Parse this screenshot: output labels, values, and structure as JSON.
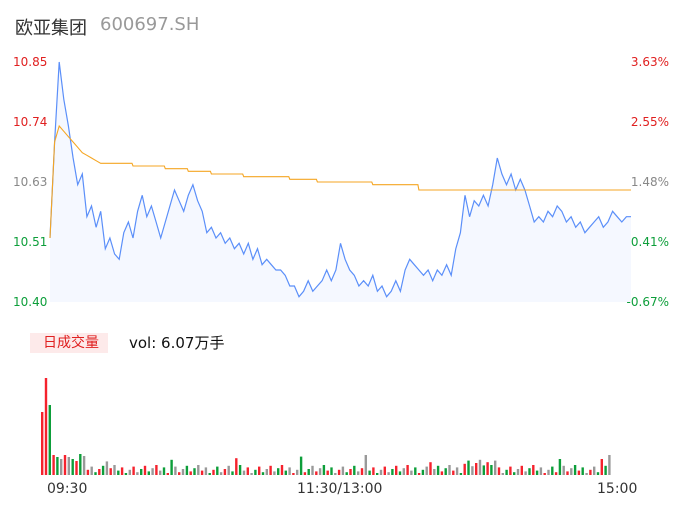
{
  "header": {
    "name": "欧亚集团",
    "code": "600697.SH"
  },
  "legend": {
    "label": "日成交量",
    "volume_text": "vol: 6.07万手"
  },
  "colors": {
    "price": "#5b8ff9",
    "avg": "#f5a623",
    "up": "#f5222d",
    "down": "#0d9e3a",
    "flat": "#999999"
  },
  "chart_data": {
    "type": "line",
    "title": "",
    "y_left_ticks": [
      "10.85",
      "10.74",
      "10.63",
      "10.51",
      "10.40"
    ],
    "y_right_ticks": [
      "3.63%",
      "2.55%",
      "1.48%",
      "0.41%",
      "-0.67%"
    ],
    "x_ticks": [
      "09:30",
      "11:30/13:00",
      "15:00"
    ],
    "ylim": [
      10.4,
      10.85
    ],
    "prev_close": 10.47,
    "grid": false,
    "series": [
      {
        "kind": "price",
        "points": [
          [
            0,
            10.52
          ],
          [
            1,
            10.7
          ],
          [
            2,
            10.85
          ],
          [
            3,
            10.78
          ],
          [
            4,
            10.73
          ],
          [
            5,
            10.67
          ],
          [
            6,
            10.62
          ],
          [
            7,
            10.64
          ],
          [
            8,
            10.56
          ],
          [
            9,
            10.58
          ],
          [
            10,
            10.54
          ],
          [
            11,
            10.57
          ],
          [
            12,
            10.5
          ],
          [
            13,
            10.52
          ],
          [
            14,
            10.49
          ],
          [
            15,
            10.48
          ],
          [
            16,
            10.53
          ],
          [
            17,
            10.55
          ],
          [
            18,
            10.52
          ],
          [
            19,
            10.57
          ],
          [
            20,
            10.6
          ],
          [
            21,
            10.56
          ],
          [
            22,
            10.58
          ],
          [
            23,
            10.55
          ],
          [
            24,
            10.52
          ],
          [
            25,
            10.55
          ],
          [
            26,
            10.58
          ],
          [
            27,
            10.61
          ],
          [
            28,
            10.59
          ],
          [
            29,
            10.57
          ],
          [
            30,
            10.6
          ],
          [
            31,
            10.62
          ],
          [
            32,
            10.59
          ],
          [
            33,
            10.57
          ],
          [
            34,
            10.53
          ],
          [
            35,
            10.54
          ],
          [
            36,
            10.52
          ],
          [
            37,
            10.53
          ],
          [
            38,
            10.51
          ],
          [
            39,
            10.52
          ],
          [
            40,
            10.5
          ],
          [
            41,
            10.51
          ],
          [
            42,
            10.49
          ],
          [
            43,
            10.51
          ],
          [
            44,
            10.48
          ],
          [
            45,
            10.5
          ],
          [
            46,
            10.47
          ],
          [
            47,
            10.48
          ],
          [
            48,
            10.47
          ],
          [
            49,
            10.46
          ],
          [
            50,
            10.46
          ],
          [
            51,
            10.45
          ],
          [
            52,
            10.43
          ],
          [
            53,
            10.43
          ],
          [
            54,
            10.41
          ],
          [
            55,
            10.42
          ],
          [
            56,
            10.44
          ],
          [
            57,
            10.42
          ],
          [
            58,
            10.43
          ],
          [
            59,
            10.44
          ],
          [
            60,
            10.46
          ],
          [
            61,
            10.44
          ],
          [
            62,
            10.46
          ],
          [
            63,
            10.51
          ],
          [
            64,
            10.48
          ],
          [
            65,
            10.46
          ],
          [
            66,
            10.45
          ],
          [
            67,
            10.43
          ],
          [
            68,
            10.44
          ],
          [
            69,
            10.43
          ],
          [
            70,
            10.45
          ],
          [
            71,
            10.42
          ],
          [
            72,
            10.43
          ],
          [
            73,
            10.41
          ],
          [
            74,
            10.42
          ],
          [
            75,
            10.44
          ],
          [
            76,
            10.42
          ],
          [
            77,
            10.46
          ],
          [
            78,
            10.48
          ],
          [
            79,
            10.47
          ],
          [
            80,
            10.46
          ],
          [
            81,
            10.45
          ],
          [
            82,
            10.46
          ],
          [
            83,
            10.44
          ],
          [
            84,
            10.46
          ],
          [
            85,
            10.45
          ],
          [
            86,
            10.47
          ],
          [
            87,
            10.45
          ],
          [
            88,
            10.5
          ],
          [
            89,
            10.53
          ],
          [
            90,
            10.6
          ],
          [
            91,
            10.56
          ],
          [
            92,
            10.59
          ],
          [
            93,
            10.58
          ],
          [
            94,
            10.6
          ],
          [
            95,
            10.58
          ],
          [
            96,
            10.62
          ],
          [
            97,
            10.67
          ],
          [
            98,
            10.64
          ],
          [
            99,
            10.62
          ],
          [
            100,
            10.64
          ],
          [
            101,
            10.61
          ],
          [
            102,
            10.63
          ],
          [
            103,
            10.61
          ],
          [
            104,
            10.58
          ],
          [
            105,
            10.55
          ],
          [
            106,
            10.56
          ],
          [
            107,
            10.55
          ],
          [
            108,
            10.57
          ],
          [
            109,
            10.56
          ],
          [
            110,
            10.58
          ],
          [
            111,
            10.57
          ],
          [
            112,
            10.55
          ],
          [
            113,
            10.56
          ],
          [
            114,
            10.54
          ],
          [
            115,
            10.55
          ],
          [
            116,
            10.53
          ],
          [
            117,
            10.54
          ],
          [
            118,
            10.55
          ],
          [
            119,
            10.56
          ],
          [
            120,
            10.54
          ],
          [
            121,
            10.55
          ],
          [
            122,
            10.57
          ],
          [
            123,
            10.56
          ],
          [
            124,
            10.55
          ],
          [
            125,
            10.56
          ],
          [
            126,
            10.56
          ]
        ]
      },
      {
        "kind": "avg",
        "points": [
          [
            0,
            10.52
          ],
          [
            1,
            10.7
          ],
          [
            2,
            10.73
          ],
          [
            3,
            10.72
          ],
          [
            4,
            10.71
          ],
          [
            5,
            10.7
          ],
          [
            6,
            10.69
          ],
          [
            7,
            10.68
          ],
          [
            8,
            10.675
          ],
          [
            9,
            10.67
          ],
          [
            10,
            10.665
          ],
          [
            11,
            10.66
          ],
          [
            12,
            10.66
          ],
          [
            18,
            10.655
          ],
          [
            25,
            10.65
          ],
          [
            30,
            10.645
          ],
          [
            35,
            10.64
          ],
          [
            42,
            10.635
          ],
          [
            52,
            10.63
          ],
          [
            58,
            10.625
          ],
          [
            70,
            10.62
          ],
          [
            80,
            10.61
          ],
          [
            126,
            10.61
          ]
        ]
      }
    ]
  }
}
